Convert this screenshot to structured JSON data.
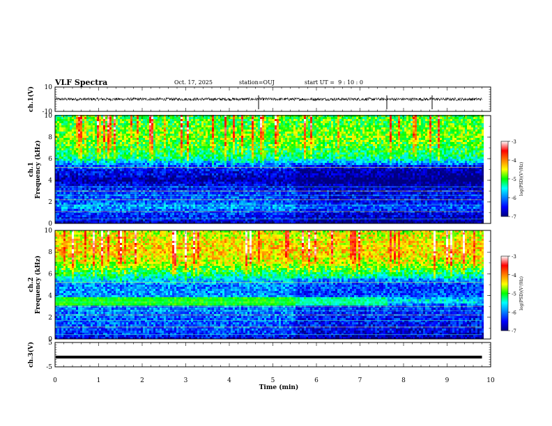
{
  "header": {
    "title": "VLF Spectra",
    "date": "Oct. 17, 2025",
    "station": "station=OUJ",
    "start_ut": "start UT =  9 : 10 : 0"
  },
  "chart_data": [
    {
      "type": "line",
      "panel": "ch1-waveform",
      "ylabel": "ch.1(V)",
      "ylim": [
        -10,
        10
      ],
      "yticks": [
        10,
        -10
      ],
      "xlim": [
        0,
        10
      ],
      "series_level": 0,
      "series_noise_amplitude": 1.2,
      "data_end_min": 9.8
    },
    {
      "type": "heatmap",
      "panel": "ch1-spectrogram",
      "ylabel": "ch.1 Frequency (kHz)",
      "ylim": [
        0,
        10
      ],
      "yticks": [
        0,
        2,
        4,
        6,
        8,
        10
      ],
      "xlim": [
        0,
        10
      ],
      "data_end_min": 9.8,
      "colorbar": {
        "label": "log(PSD)(V²/Hz)",
        "range": [
          -7,
          -3
        ],
        "ticks": [
          -3,
          -4,
          -5,
          -6,
          -7
        ]
      },
      "profile_kHz": [
        {
          "f": 0.0,
          "v": -6.8
        },
        {
          "f": 0.5,
          "v": -6.4
        },
        {
          "f": 1.0,
          "v": -6.3
        },
        {
          "f": 1.5,
          "v": -5.8
        },
        {
          "f": 2.0,
          "v": -6.2
        },
        {
          "f": 2.5,
          "v": -6.2
        },
        {
          "f": 3.0,
          "v": -6.3
        },
        {
          "f": 3.5,
          "v": -6.5
        },
        {
          "f": 4.0,
          "v": -6.9
        },
        {
          "f": 4.5,
          "v": -6.6
        },
        {
          "f": 5.0,
          "v": -6.5
        },
        {
          "f": 5.5,
          "v": -6.0
        },
        {
          "f": 6.0,
          "v": -5.3
        },
        {
          "f": 7.0,
          "v": -5.0
        },
        {
          "f": 8.0,
          "v": -4.8
        },
        {
          "f": 9.0,
          "v": -4.9
        },
        {
          "f": 10.0,
          "v": -5.0
        }
      ]
    },
    {
      "type": "heatmap",
      "panel": "ch2-spectrogram",
      "ylabel": "ch.2 Frequency (kHz)",
      "ylim": [
        0,
        10
      ],
      "yticks": [
        0,
        2,
        4,
        6,
        8,
        10
      ],
      "xlim": [
        0,
        10
      ],
      "data_end_min": 9.8,
      "colorbar": {
        "label": "log(PSD)(V²/Hz)",
        "range": [
          -7,
          -3
        ],
        "ticks": [
          -3,
          -4,
          -5,
          -6,
          -7
        ]
      },
      "band_kHz": {
        "f": 3.5,
        "v": -5.0,
        "end_min": 7.6
      },
      "profile_kHz": [
        {
          "f": 0.0,
          "v": -6.6
        },
        {
          "f": 0.5,
          "v": -6.3
        },
        {
          "f": 1.0,
          "v": -6.2
        },
        {
          "f": 2.0,
          "v": -6.1
        },
        {
          "f": 3.0,
          "v": -6.0
        },
        {
          "f": 3.5,
          "v": -5.2
        },
        {
          "f": 4.0,
          "v": -5.9
        },
        {
          "f": 5.0,
          "v": -6.0
        },
        {
          "f": 6.0,
          "v": -5.2
        },
        {
          "f": 7.0,
          "v": -4.6
        },
        {
          "f": 8.0,
          "v": -4.3
        },
        {
          "f": 9.0,
          "v": -4.4
        },
        {
          "f": 10.0,
          "v": -4.6
        }
      ]
    },
    {
      "type": "line",
      "panel": "ch3-waveform",
      "ylabel": "ch.3(V)",
      "ylim": [
        -5,
        5
      ],
      "yticks": [
        5,
        -5
      ],
      "xlim": [
        0,
        10
      ],
      "series_level": -1,
      "data_end_min": 9.8
    }
  ],
  "xaxis": {
    "label": "Time (min)",
    "range": [
      0,
      10
    ],
    "ticks": [
      "0",
      "1",
      "2",
      "3",
      "4",
      "5",
      "6",
      "7",
      "8",
      "9",
      "10"
    ]
  }
}
